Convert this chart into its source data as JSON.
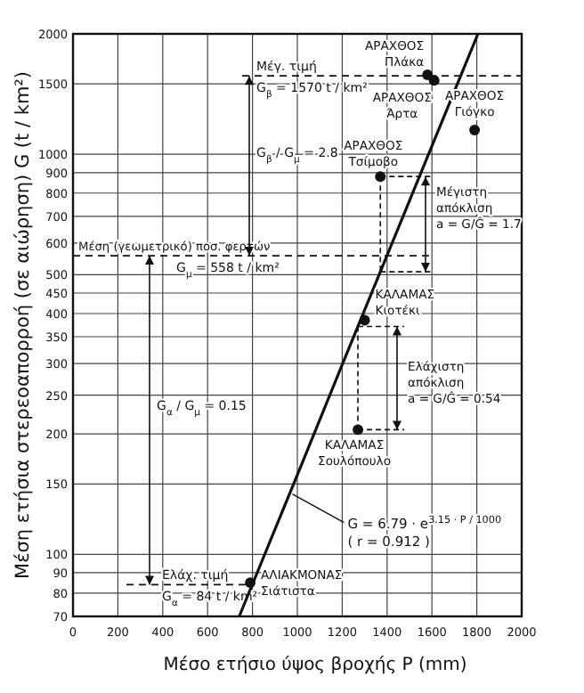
{
  "chart_data": {
    "type": "scatter",
    "xlabel": "Μέσο ετήσιο ύψος βροχής   P (mm)",
    "ylabel": "Μέση ετήσια στερεοαπορροή  (σε αιώρηση)  G (t / km²)",
    "xlim": [
      0,
      2000
    ],
    "xticks": [
      0,
      200,
      400,
      600,
      800,
      1000,
      1200,
      1400,
      1600,
      1800,
      2000
    ],
    "ylim": [
      70,
      2000
    ],
    "yticks": [
      70,
      80,
      90,
      100,
      150,
      200,
      250,
      300,
      350,
      400,
      450,
      500,
      600,
      700,
      800,
      900,
      1000,
      1500,
      2000
    ],
    "log": "y",
    "grid": true,
    "series": [
      {
        "color": "#111111",
        "marker": "circle",
        "x": [
          1580,
          1610,
          1790,
          1370,
          1300,
          1270,
          790
        ],
        "values": [
          1580,
          1530,
          1150,
          880,
          385,
          205,
          85
        ]
      },
      {
        "type": "line",
        "color": "#111111",
        "marker": "none",
        "line_style": "solid",
        "x": [
          741,
          1000,
          1200,
          1400,
          1600,
          1805
        ],
        "values": [
          70,
          158,
          298,
          559,
          1049,
          2000
        ]
      }
    ],
    "ref_lines": [
      {
        "axis": "y",
        "value": 1570,
        "label": "Μέγ. τιμή\nG$_{β}$ = 1570 t / km²",
        "line_style": "dashed",
        "color": "#111111"
      },
      {
        "axis": "y",
        "value": 558,
        "label": "Μέση  (γεωμετρικό)  ποσ. φερτών\nG$_{μ}$ = 558  t / km²",
        "line_style": "dashed",
        "color": "#111111"
      },
      {
        "axis": "y",
        "value": 84,
        "label": "Ελάχ. τιμή\nG$_{α}$ = 84 t / km²",
        "line_style": "dashed",
        "color": "#111111"
      }
    ],
    "annotations": [
      {
        "text": "ΑΡΑΧΘΟΣ\nΠλάκα",
        "x": 1580,
        "y": 1580
      },
      {
        "text": "ΑΡΑΧΘΟΣ\nΆρτα",
        "x": 1610,
        "y": 1530
      },
      {
        "text": "ΑΡΑΧΘΟΣ\nΓιόγκο",
        "x": 1790,
        "y": 1150
      },
      {
        "text": "ΑΡΑΧΘΟΣ\nΤσίμοβο",
        "x": 1370,
        "y": 880
      },
      {
        "text": "ΚΑΛΑΜΑΣ\nΚιοτέκι",
        "x": 1300,
        "y": 385
      },
      {
        "text": "ΚΑΛΑΜΑΣ\nΣουλόπουλο",
        "x": 1270,
        "y": 205
      },
      {
        "text": "ΑΛΙΑΚΜΟΝΑΣ\nΣιάτιστα",
        "x": 790,
        "y": 85
      },
      "G$_{β}$ / G$_{μ}$ = 2.8",
      "G$_{α}$ / G$_{μ}$ = 0.15",
      "Μέγιστη\nαπόκλιση\na = G/Ĝ = 1.7",
      "Ελάχιστη\nαπόκλιση\na = G/Ĝ = 0.54",
      {
        "text": "G = 6.79 · e$^{3.15 · P / 1000}$\n( r = 0.912 )",
        "x": 970,
        "y": 143
      }
    ]
  }
}
